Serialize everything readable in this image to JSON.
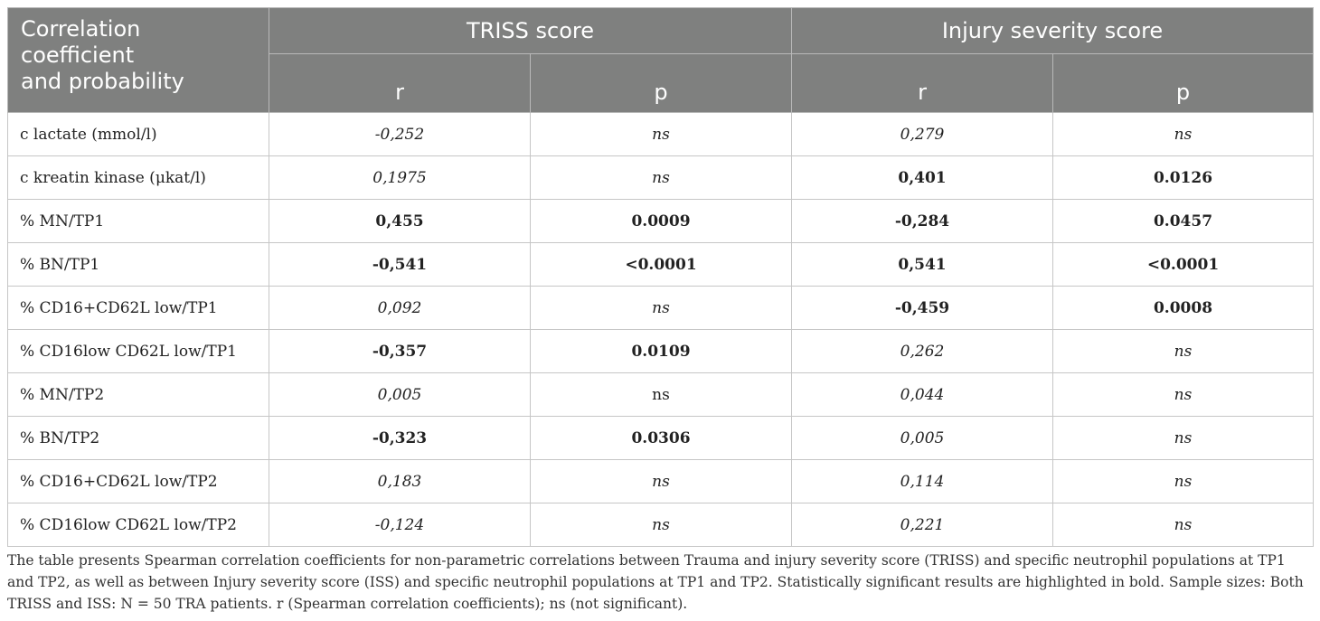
{
  "header": {
    "corner": "Correlation\ncoefficient\nand probability",
    "groups": [
      "TRISS score",
      "Injury severity score"
    ],
    "subheads": [
      "r",
      "p",
      "r",
      "p"
    ]
  },
  "rows": [
    {
      "label": "c lactate (mmol/l)",
      "cells": [
        {
          "text": "-0,252",
          "style": "italic"
        },
        {
          "text": "ns",
          "style": "italic"
        },
        {
          "text": "0,279",
          "style": "italic"
        },
        {
          "text": "ns",
          "style": "italic"
        }
      ]
    },
    {
      "label": "c kreatin kinase (μkat/l)",
      "cells": [
        {
          "text": "0,1975",
          "style": "italic"
        },
        {
          "text": "ns",
          "style": "italic"
        },
        {
          "text": "0,401",
          "style": "bold"
        },
        {
          "text": "0.0126",
          "style": "bold"
        }
      ]
    },
    {
      "label": "% MN/TP1",
      "cells": [
        {
          "text": "0,455",
          "style": "bold"
        },
        {
          "text": "0.0009",
          "style": "bold"
        },
        {
          "text": "-0,284",
          "style": "bold"
        },
        {
          "text": "0.0457",
          "style": "bold"
        }
      ]
    },
    {
      "label": "% BN/TP1",
      "cells": [
        {
          "text": "-0,541",
          "style": "bold"
        },
        {
          "text": "<0.0001",
          "style": "bold"
        },
        {
          "text": "0,541",
          "style": "bold"
        },
        {
          "text": "<0.0001",
          "style": "bold"
        }
      ]
    },
    {
      "label": "% CD16+CD62L low/TP1",
      "cells": [
        {
          "text": "0,092",
          "style": "italic"
        },
        {
          "text": "ns",
          "style": "italic"
        },
        {
          "text": "-0,459",
          "style": "bold"
        },
        {
          "text": "0.0008",
          "style": "bold"
        }
      ]
    },
    {
      "label": "% CD16low CD62L low/TP1",
      "cells": [
        {
          "text": "-0,357",
          "style": "bold"
        },
        {
          "text": "0.0109",
          "style": "bold"
        },
        {
          "text": "0,262",
          "style": "italic"
        },
        {
          "text": "ns",
          "style": "italic"
        }
      ]
    },
    {
      "label": "% MN/TP2",
      "cells": [
        {
          "text": "0,005",
          "style": "italic"
        },
        {
          "text": "ns",
          "style": "plain"
        },
        {
          "text": "0,044",
          "style": "italic"
        },
        {
          "text": "ns",
          "style": "italic"
        }
      ]
    },
    {
      "label": "% BN/TP2",
      "cells": [
        {
          "text": "-0,323",
          "style": "bold"
        },
        {
          "text": "0.0306",
          "style": "bold"
        },
        {
          "text": "0,005",
          "style": "italic"
        },
        {
          "text": "ns",
          "style": "italic"
        }
      ]
    },
    {
      "label": "% CD16+CD62L low/TP2",
      "cells": [
        {
          "text": "0,183",
          "style": "italic"
        },
        {
          "text": "ns",
          "style": "italic"
        },
        {
          "text": "0,114",
          "style": "italic"
        },
        {
          "text": "ns",
          "style": "italic"
        }
      ]
    },
    {
      "label": "% CD16low CD62L low/TP2",
      "cells": [
        {
          "text": "-0,124",
          "style": "italic"
        },
        {
          "text": "ns",
          "style": "italic"
        },
        {
          "text": "0,221",
          "style": "italic"
        },
        {
          "text": "ns",
          "style": "italic"
        }
      ]
    }
  ],
  "footnote": "The table presents Spearman correlation coefficients for non-parametric correlations between Trauma and injury severity score (TRISS) and specific neutrophil populations at TP1 and TP2, as well as between Injury severity score (ISS) and specific neutrophil populations at TP1 and TP2. Statistically significant results are highlighted in bold. Sample sizes: Both TRISS and ISS: N = 50 TRA patients. r (Spearman correlation coefficients); ns (not significant)."
}
